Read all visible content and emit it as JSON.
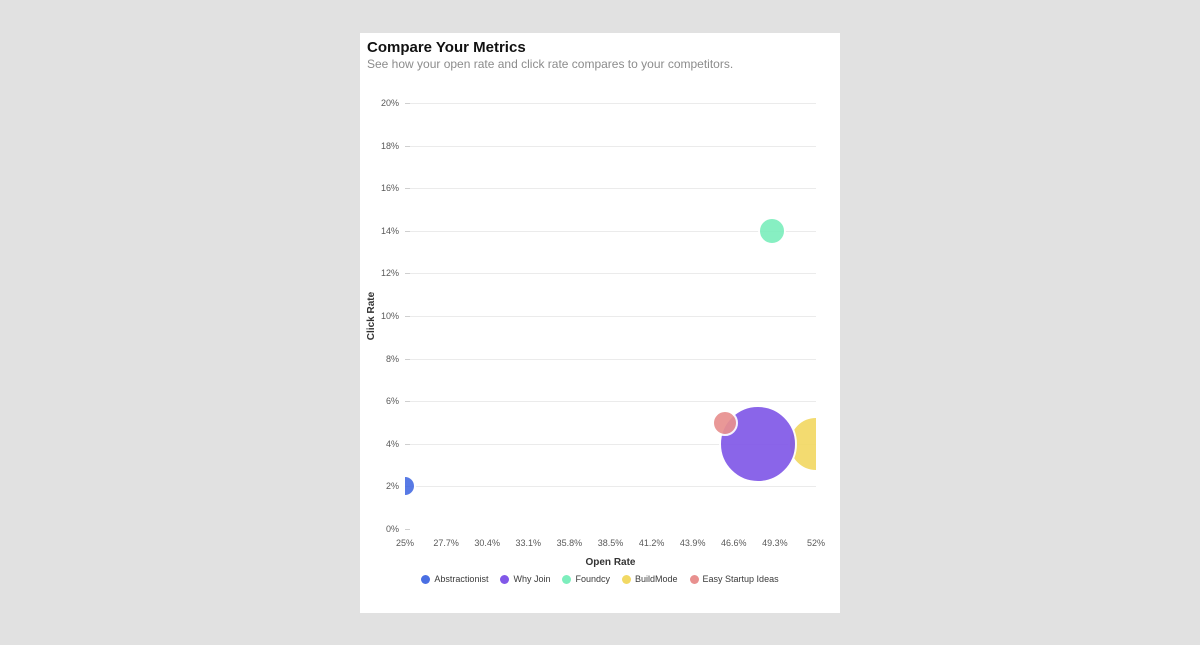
{
  "page": {
    "background_color": "#e1e1e1"
  },
  "card": {
    "title": "Compare Your Metrics",
    "subtitle": "See how your open rate and click rate compares to your competitors."
  },
  "chart_data": {
    "type": "scatter",
    "subtype": "bubble",
    "title": "Compare Your Metrics",
    "subtitle": "See how your open rate and click rate compares to your competitors.",
    "xlabel": "Open Rate",
    "ylabel": "Click Rate",
    "xlim": [
      25,
      52
    ],
    "ylim": [
      0,
      20
    ],
    "grid": true,
    "legend_position": "bottom",
    "x_tick_values": [
      25,
      27.7,
      30.4,
      33.1,
      35.8,
      38.5,
      41.2,
      43.9,
      46.6,
      49.3,
      52
    ],
    "x_tick_labels": [
      "25%",
      "27.7%",
      "30.4%",
      "33.1%",
      "35.8%",
      "38.5%",
      "41.2%",
      "43.9%",
      "46.6%",
      "49.3%",
      "52%"
    ],
    "y_tick_values": [
      0,
      2,
      4,
      6,
      8,
      10,
      12,
      14,
      16,
      18,
      20
    ],
    "y_tick_labels": [
      "0%",
      "2%",
      "4%",
      "6%",
      "8%",
      "10%",
      "12%",
      "14%",
      "16%",
      "18%",
      "20%"
    ],
    "series": [
      {
        "name": "Abstractionist",
        "color": "#4a6fe3",
        "open_rate": 25,
        "click_rate": 2,
        "radius_px": 11,
        "z": 1
      },
      {
        "name": "Why Join",
        "color": "#8158e8",
        "open_rate": 48.2,
        "click_rate": 4,
        "radius_px": 39,
        "z": 2
      },
      {
        "name": "Foundcy",
        "color": "#7deebd",
        "open_rate": 49.1,
        "click_rate": 14,
        "radius_px": 14,
        "z": 1
      },
      {
        "name": "BuildMode",
        "color": "#f2d964",
        "open_rate": 52,
        "click_rate": 4,
        "radius_px": 28,
        "z": 1
      },
      {
        "name": "Easy Startup Ideas",
        "color": "#e8908f",
        "open_rate": 46,
        "click_rate": 5,
        "radius_px": 13,
        "z": 3
      }
    ]
  }
}
